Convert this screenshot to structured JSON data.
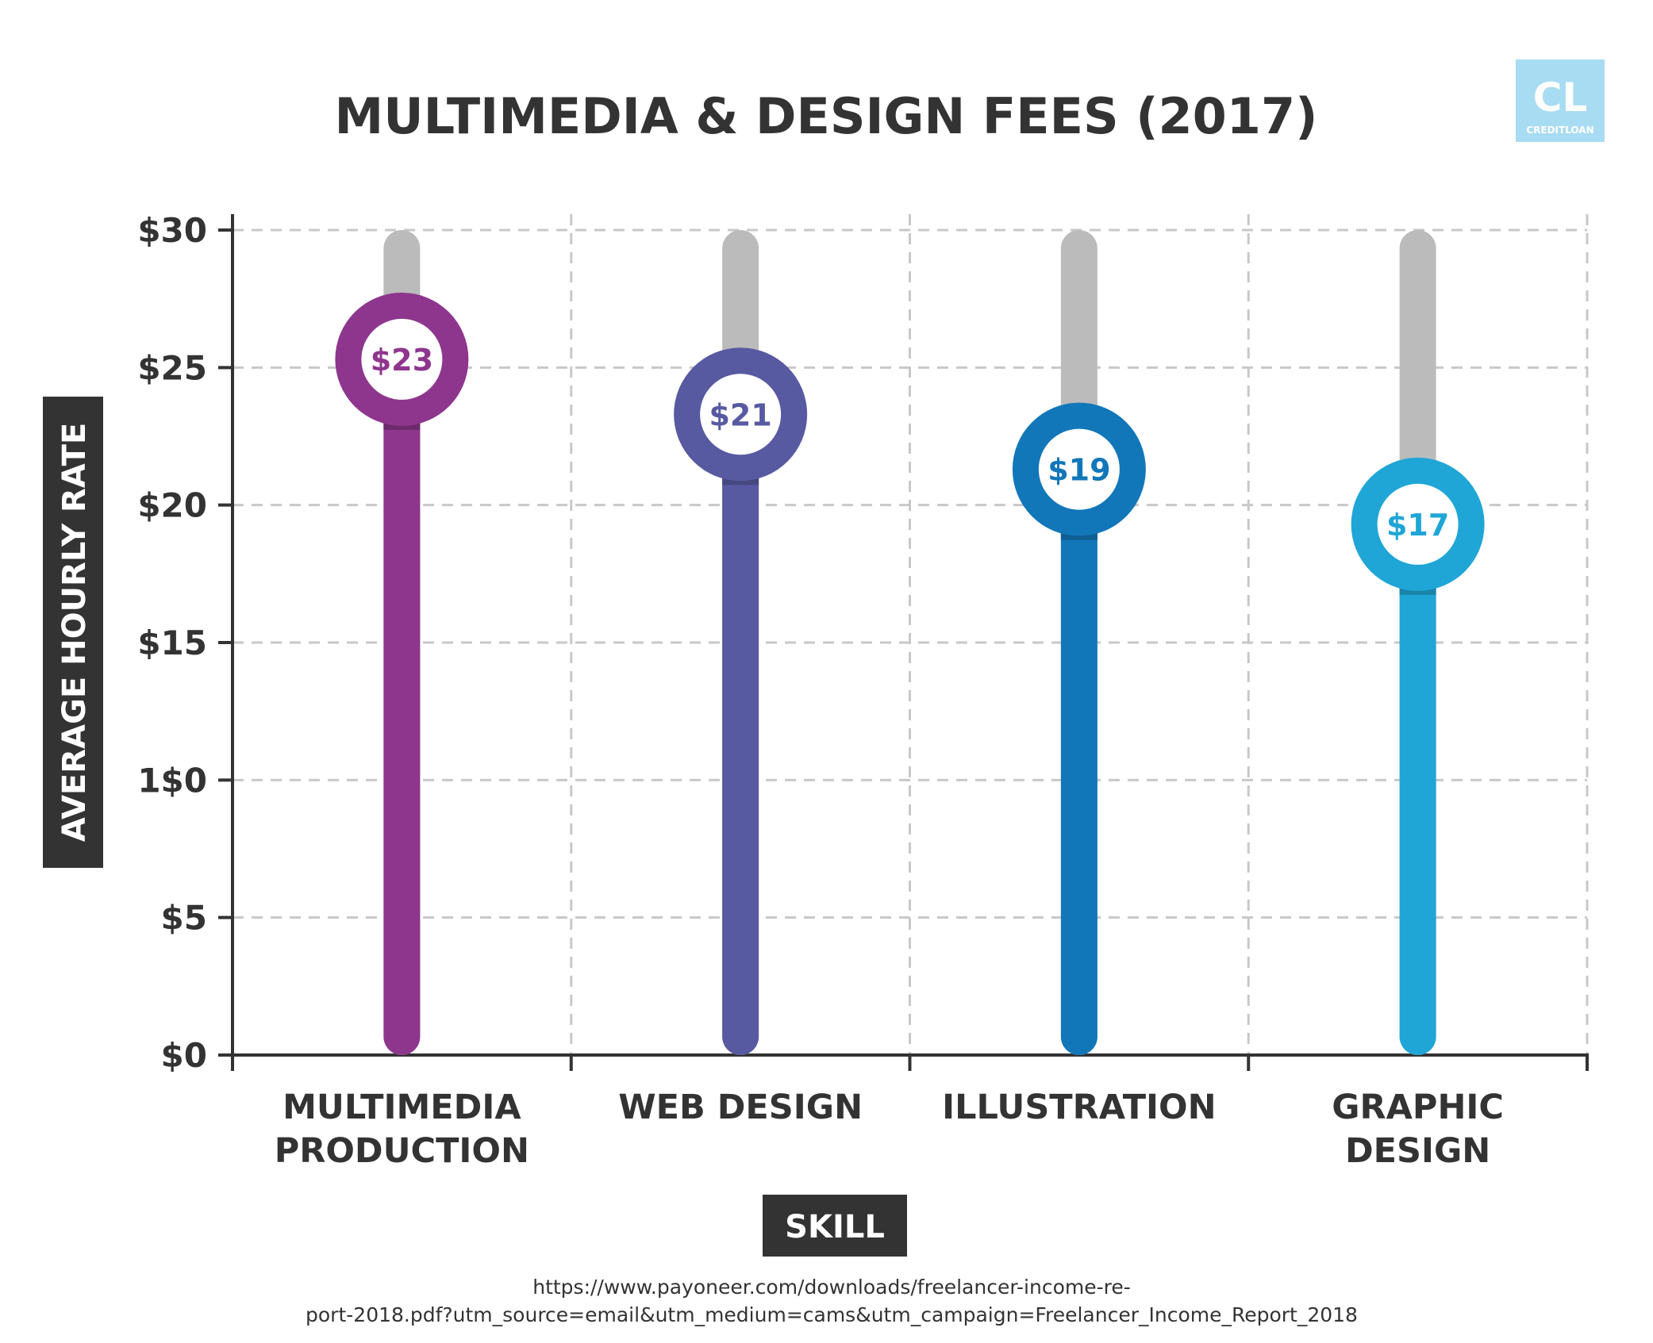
{
  "logo": {
    "mark": "CL",
    "name": "CREDITLOAN",
    "color": "#a8dcf2"
  },
  "source": {
    "line1": "https://www.payoneer.com/downloads/freelancer-income-re-",
    "line2": "port-2018.pdf?utm_source=email&utm_medium=cams&utm_campaign=Freelancer_Income_Report_2018"
  },
  "chart_data": {
    "type": "bar",
    "title": "MULTIMEDIA & DESIGN FEES (2017)",
    "xlabel": "SKILL",
    "ylabel": "AVERAGE HOURLY RATE",
    "ylim": [
      0,
      30
    ],
    "grid": true,
    "y_ticks": [
      {
        "value": 0,
        "label": "$0"
      },
      {
        "value": 5,
        "label": "$5"
      },
      {
        "value": 10,
        "label": "1$0"
      },
      {
        "value": 15,
        "label": "$15"
      },
      {
        "value": 20,
        "label": "$20"
      },
      {
        "value": 25,
        "label": "$25"
      },
      {
        "value": 30,
        "label": "$30"
      }
    ],
    "categories": [
      {
        "name": [
          "MULTIMEDIA",
          "PRODUCTION"
        ],
        "value": 23,
        "label": "$23",
        "color": "#8e368d",
        "shadow": "#6d2a6c"
      },
      {
        "name": [
          "WEB DESIGN"
        ],
        "value": 21,
        "label": "$21",
        "color": "#575aa1",
        "shadow": "#45487f"
      },
      {
        "name": [
          "ILLUSTRATION"
        ],
        "value": 19,
        "label": "$19",
        "color": "#1277b9",
        "shadow": "#0e5e93"
      },
      {
        "name": [
          "GRAPHIC",
          "DESIGN"
        ],
        "value": 17,
        "label": "$17",
        "color": "#1fa6d6",
        "shadow": "#1a84aa"
      }
    ],
    "track_color": "#bcbbbc"
  }
}
